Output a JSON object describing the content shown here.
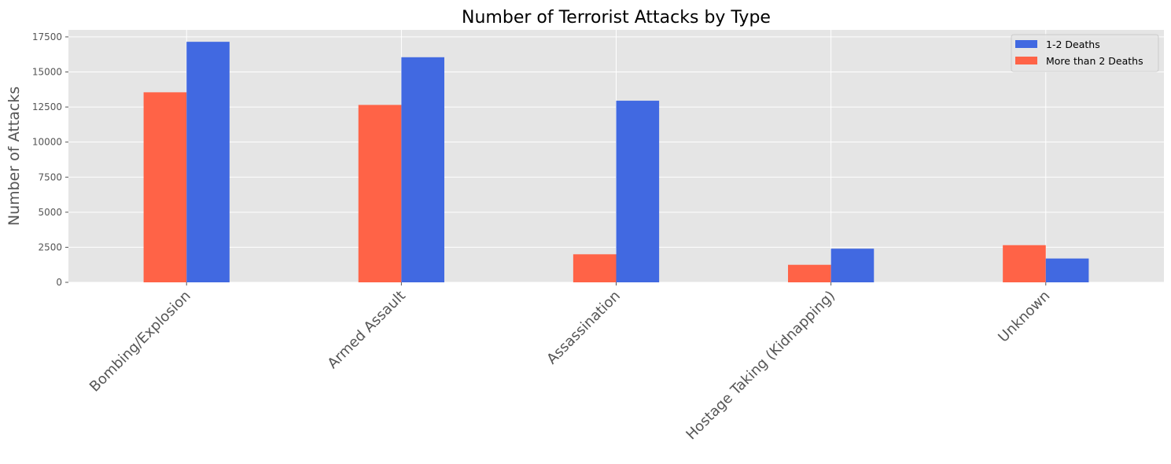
{
  "chart_data": {
    "type": "bar",
    "title": "Number of Terrorist Attacks by Type",
    "xlabel": "",
    "ylabel": "Number of Attacks",
    "categories": [
      "Bombing/Explosion",
      "Armed Assault",
      "Assassination",
      "Hostage Taking (Kidnapping)",
      "Unknown"
    ],
    "series": [
      {
        "name": "More than 2 Deaths",
        "color": "#ff6347",
        "values": [
          13550,
          12650,
          2000,
          1250,
          2650
        ]
      },
      {
        "name": "1-2 Deaths",
        "color": "#4169e1",
        "values": [
          17150,
          16050,
          12950,
          2400,
          1700
        ]
      }
    ],
    "legend_order": [
      1,
      0
    ],
    "legend_position": "top-right",
    "ylim": [
      0,
      18000
    ],
    "yticks": [
      0,
      2500,
      5000,
      7500,
      10000,
      12500,
      15000,
      17500
    ],
    "grid": true,
    "style": {
      "background": "#e5e5e5",
      "grid_color": "#ffffff"
    }
  }
}
